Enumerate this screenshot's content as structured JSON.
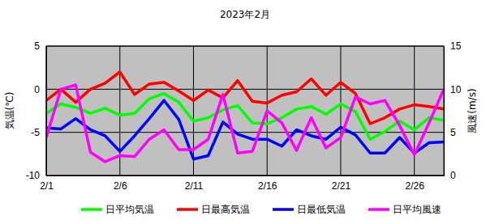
{
  "chart_data": {
    "type": "line",
    "title": "2023年2月",
    "y_label": "気温(℃)",
    "y2_label": "風速(m/s)",
    "x": [
      1,
      2,
      3,
      4,
      5,
      6,
      7,
      8,
      9,
      10,
      11,
      12,
      13,
      14,
      15,
      16,
      17,
      18,
      19,
      20,
      21,
      22,
      23,
      24,
      25,
      26,
      27,
      28
    ],
    "xlim": [
      1,
      28
    ],
    "xticks": [
      {
        "value": 1,
        "label": "2/1"
      },
      {
        "value": 6,
        "label": "2/6"
      },
      {
        "value": 11,
        "label": "2/11"
      },
      {
        "value": 16,
        "label": "2/16"
      },
      {
        "value": 21,
        "label": "2/21"
      },
      {
        "value": 26,
        "label": "2/26"
      }
    ],
    "ylim": [
      -10,
      5
    ],
    "yticks": [
      -10,
      -5,
      0,
      5
    ],
    "y2lim": [
      0,
      15
    ],
    "y2ticks": [
      0,
      5,
      10,
      15
    ],
    "grid": true,
    "legend": "bottom",
    "series": [
      {
        "name": "日平均気温",
        "color": "#00ff00",
        "values": [
          -2.8,
          -1.7,
          -2.1,
          -2.8,
          -2.2,
          -3.0,
          -2.8,
          -1.1,
          -0.5,
          -1.5,
          -3.7,
          -3.3,
          -2.4,
          -1.9,
          -3.9,
          -4.0,
          -3.3,
          -2.3,
          -2.0,
          -2.9,
          -1.7,
          -2.6,
          -5.8,
          -4.9,
          -3.7,
          -4.7,
          -3.3,
          -3.6
        ]
      },
      {
        "name": "日最高気温",
        "color": "#ff0000",
        "values": [
          -1.3,
          0.0,
          -1.5,
          0.0,
          0.7,
          2.0,
          -0.6,
          0.6,
          0.8,
          -0.2,
          -1.3,
          -0.1,
          -1.0,
          1.0,
          -1.4,
          -1.6,
          -0.7,
          -0.3,
          1.2,
          -0.7,
          0.8,
          -0.5,
          -4.0,
          -3.3,
          -2.3,
          -1.8,
          -2.0,
          -2.3
        ]
      },
      {
        "name": "日最低気温",
        "color": "#0000ff",
        "values": [
          -4.5,
          -4.6,
          -3.4,
          -4.7,
          -5.4,
          -7.2,
          -5.4,
          -3.4,
          -1.3,
          -3.5,
          -8.1,
          -7.7,
          -3.8,
          -5.2,
          -5.8,
          -5.8,
          -6.6,
          -4.7,
          -5.4,
          -5.8,
          -4.4,
          -5.3,
          -7.4,
          -7.4,
          -5.6,
          -7.4,
          -6.2,
          -6.1
        ]
      },
      {
        "name": "日平均風速",
        "color": "#ff00ff",
        "axis": "y2",
        "values": [
          4.4,
          10.0,
          10.5,
          2.7,
          1.6,
          2.3,
          2.2,
          4.2,
          5.3,
          3.0,
          3.0,
          4.2,
          9.4,
          2.6,
          2.8,
          7.5,
          6.1,
          2.9,
          6.7,
          3.2,
          4.4,
          9.1,
          8.3,
          8.7,
          5.8,
          2.4,
          6.1,
          10.0
        ]
      }
    ]
  }
}
